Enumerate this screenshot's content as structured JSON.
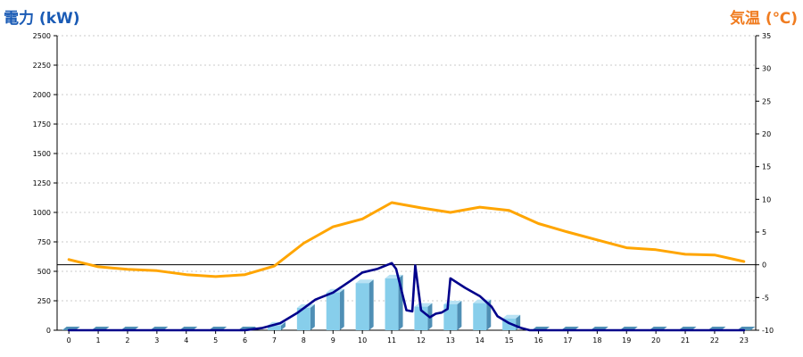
{
  "chart_data": {
    "type": "bar+line",
    "left_axis": {
      "label": "電力 (kW)",
      "color": "#1a5bb5",
      "min": 0,
      "max": 2500,
      "ticks": [
        0,
        250,
        500,
        750,
        1000,
        1250,
        1500,
        1750,
        2000,
        2250,
        2500
      ]
    },
    "right_axis": {
      "label": "気温 (℃)",
      "color": "#f07c20",
      "min": -10,
      "max": 35,
      "ticks": [
        -10,
        -5,
        0,
        5,
        10,
        15,
        20,
        25,
        30,
        35
      ]
    },
    "categories": [
      "0",
      "1",
      "2",
      "3",
      "4",
      "5",
      "6",
      "7",
      "8",
      "9",
      "10",
      "11",
      "12",
      "13",
      "14",
      "15",
      "16",
      "17",
      "18",
      "19",
      "20",
      "21",
      "22",
      "23"
    ],
    "x_range": [
      -0.4,
      23.4
    ],
    "grid": true,
    "series": [
      {
        "type": "bar",
        "axis": "left",
        "color": "#87ceeb",
        "values": [
          0,
          0,
          0,
          0,
          0,
          0,
          0,
          40,
          190,
          320,
          400,
          440,
          200,
          220,
          230,
          100,
          0,
          0,
          0,
          0,
          0,
          0,
          0,
          0
        ]
      },
      {
        "type": "line",
        "axis": "left",
        "color": "#00008b",
        "points": [
          [
            0,
            0
          ],
          [
            6,
            0
          ],
          [
            6.6,
            20
          ],
          [
            7.2,
            60
          ],
          [
            7.8,
            150
          ],
          [
            8.4,
            260
          ],
          [
            9,
            320
          ],
          [
            9.6,
            420
          ],
          [
            10,
            490
          ],
          [
            10.5,
            520
          ],
          [
            11,
            570
          ],
          [
            11.15,
            520
          ],
          [
            11.5,
            170
          ],
          [
            11.7,
            160
          ],
          [
            11.8,
            550
          ],
          [
            12,
            170
          ],
          [
            12.3,
            110
          ],
          [
            12.5,
            140
          ],
          [
            12.7,
            150
          ],
          [
            12.9,
            180
          ],
          [
            13,
            440
          ],
          [
            13.5,
            360
          ],
          [
            14,
            290
          ],
          [
            14.4,
            200
          ],
          [
            14.6,
            120
          ],
          [
            15,
            60
          ],
          [
            15.4,
            20
          ],
          [
            15.7,
            0
          ],
          [
            23,
            0
          ]
        ]
      },
      {
        "type": "line",
        "axis": "right",
        "color": "#ffa500",
        "points": [
          [
            0,
            0.8
          ],
          [
            1,
            -0.3
          ],
          [
            2,
            -0.7
          ],
          [
            3,
            -0.9
          ],
          [
            4,
            -1.5
          ],
          [
            5,
            -1.8
          ],
          [
            6,
            -1.5
          ],
          [
            7,
            -0.2
          ],
          [
            8,
            3.3
          ],
          [
            9,
            5.8
          ],
          [
            10,
            7.0
          ],
          [
            11,
            9.5
          ],
          [
            12,
            8.7
          ],
          [
            13,
            8.0
          ],
          [
            14,
            8.8
          ],
          [
            15,
            8.3
          ],
          [
            16,
            6.3
          ],
          [
            17,
            5.0
          ],
          [
            18,
            3.8
          ],
          [
            19,
            2.6
          ],
          [
            20,
            2.3
          ],
          [
            21,
            1.6
          ],
          [
            22,
            1.5
          ],
          [
            23,
            0.5
          ]
        ]
      }
    ]
  }
}
